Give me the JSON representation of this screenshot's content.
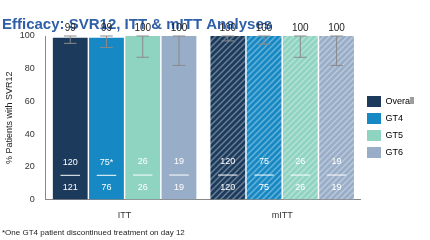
{
  "chart_data": {
    "type": "bar",
    "title": "Efficacy: SVR12, ITT & mITT Analyses",
    "y_label": "% Patients with SVR12",
    "footnote": "*One GT4 patient discontinued treatment on day 12",
    "categories": [
      "ITT",
      "mITT"
    ],
    "series": [
      {
        "name": "Overall",
        "color": "#1b3a5c",
        "values": [
          99,
          100
        ],
        "ci_low": [
          95.5,
          97
        ],
        "ci_high": [
          100,
          100
        ],
        "numerators": [
          "120",
          "120"
        ],
        "denominators": [
          "121",
          "120"
        ]
      },
      {
        "name": "GT4",
        "color": "#1689c4",
        "values": [
          99,
          100
        ],
        "ci_low": [
          93,
          95
        ],
        "ci_high": [
          100,
          100
        ],
        "numerators": [
          "75*",
          "75"
        ],
        "denominators": [
          "76",
          "75"
        ]
      },
      {
        "name": "GT5",
        "color": "#8fd3c1",
        "values": [
          100,
          100
        ],
        "ci_low": [
          87,
          87
        ],
        "ci_high": [
          100,
          100
        ],
        "numerators": [
          "26",
          "26"
        ],
        "denominators": [
          "26",
          "26"
        ]
      },
      {
        "name": "GT6",
        "color": "#98adc8",
        "values": [
          100,
          100
        ],
        "ci_low": [
          82,
          82
        ],
        "ci_high": [
          100,
          100
        ],
        "numerators": [
          "19",
          "19"
        ],
        "denominators": [
          "19",
          "19"
        ]
      }
    ],
    "ylim": [
      0,
      100
    ],
    "yticks": [
      0,
      20,
      40,
      60,
      80,
      100
    ],
    "grid": false,
    "legend": "right",
    "data_labels": true
  }
}
